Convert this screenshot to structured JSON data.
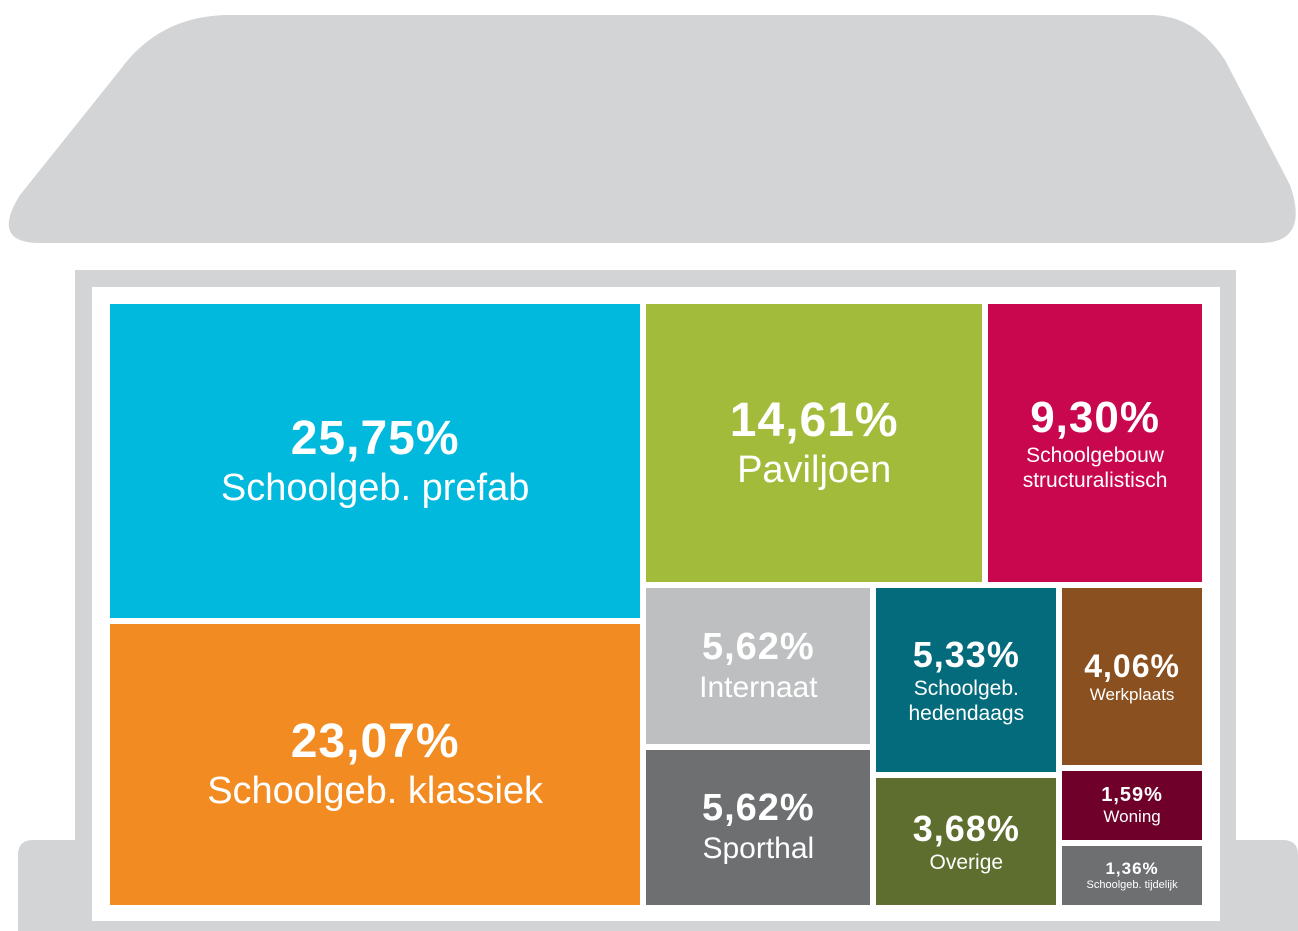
{
  "chart_data": {
    "type": "treemap",
    "categories": [
      "Schoolgeb. prefab",
      "Schoolgeb. klassiek",
      "Paviljoen",
      "Schoolgebouw structuralistisch",
      "Internaat",
      "Sporthal",
      "Schoolgeb. hedendaags",
      "Overige",
      "Werkplaats",
      "Woning",
      "Schoolgeb. tijdelijk"
    ],
    "values": [
      25.75,
      23.07,
      14.61,
      9.3,
      5.62,
      5.62,
      5.33,
      3.68,
      4.06,
      1.59,
      1.36
    ],
    "value_labels": [
      "25,75%",
      "23,07%",
      "14,61%",
      "9,30%",
      "5,62%",
      "5,62%",
      "5,33%",
      "3,68%",
      "4,06%",
      "1,59%",
      "1,36%"
    ],
    "colors": [
      "#00b9dc",
      "#f28c22",
      "#a2bb3b",
      "#c8074e",
      "#bdbfc0",
      "#6d6f71",
      "#036b7b",
      "#5d6e2e",
      "#8a501f",
      "#6e0029",
      "#6d6f71"
    ]
  }
}
